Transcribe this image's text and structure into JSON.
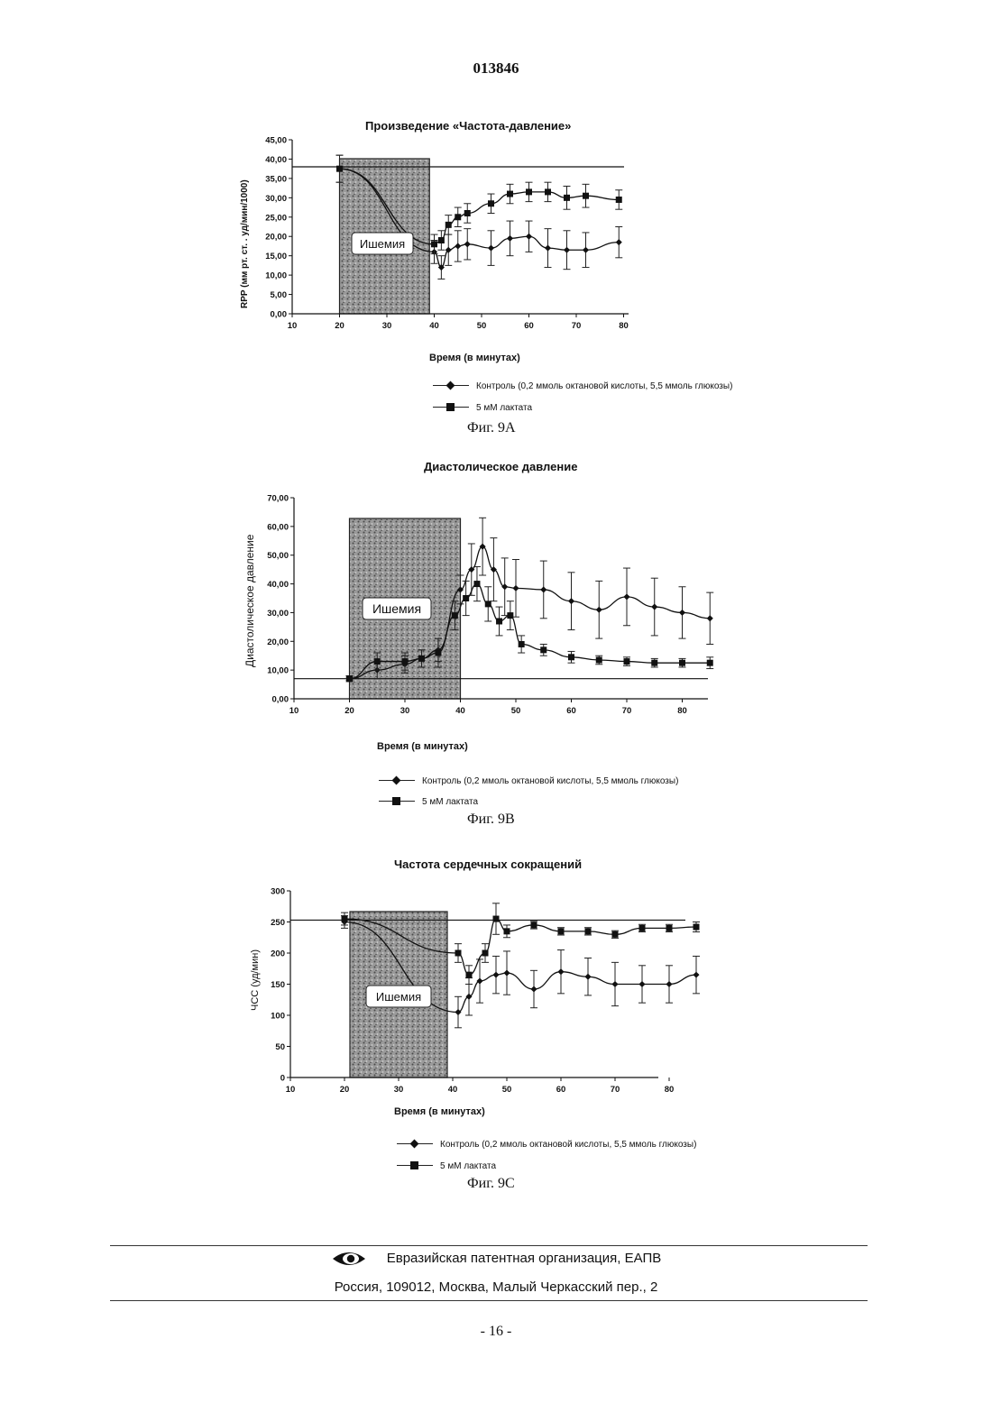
{
  "document": {
    "number": "013846",
    "page": "- 16 -",
    "footer_org": "Евразийская патентная организация, ЕАПВ",
    "footer_address": "Россия, 109012, Москва, Малый Черкасский пер., 2"
  },
  "chart_data": [
    {
      "id": "9A",
      "type": "line",
      "title": "Произведение «Частота-давление»",
      "xlabel": "Время (в минутах)",
      "ylabel": "RPP (мм рт. ст. . уд/мин/1000)",
      "xlim": [
        10,
        80
      ],
      "ylim": [
        0,
        45
      ],
      "xticks": [
        "10",
        "20",
        "30",
        "40",
        "50",
        "60",
        "70",
        "80"
      ],
      "yticks": [
        "0,00",
        "5,00",
        "10,00",
        "15,00",
        "20,00",
        "25,00",
        "30,00",
        "35,00",
        "40,00",
        "45,00"
      ],
      "ischemia_label": "Ишемия",
      "ischemia_range": [
        20,
        39
      ],
      "baseline": 38,
      "grid": false,
      "legend_position": "below",
      "series": [
        {
          "name": "Контроль (0,2 ммоль октановой кислоты, 5,5 ммоль глюкозы)",
          "marker": "diamond",
          "x": [
            20,
            40,
            41.5,
            43,
            45,
            47,
            52,
            56,
            60,
            64,
            68,
            72,
            79
          ],
          "y": [
            37.5,
            16,
            12,
            16.5,
            17.5,
            18,
            17,
            19.5,
            20,
            17,
            16.5,
            16.5,
            18.5
          ],
          "err": [
            3.5,
            3,
            3,
            4,
            4,
            4,
            4.5,
            4.5,
            4,
            5,
            5,
            4.5,
            4
          ]
        },
        {
          "name": "5 мМ лактата",
          "marker": "square",
          "x": [
            20,
            40,
            41.5,
            43,
            45,
            47,
            52,
            56,
            60,
            64,
            68,
            72,
            79
          ],
          "y": [
            37.5,
            18,
            19,
            23,
            25,
            26,
            28.5,
            31,
            31.5,
            31.5,
            30,
            30.5,
            29.5
          ],
          "err": [
            3.5,
            2.5,
            2.5,
            2.5,
            2.5,
            2.5,
            2.5,
            2.5,
            2.5,
            2.5,
            3,
            3,
            2.5
          ]
        }
      ],
      "figure_caption": "Фиг. 9A"
    },
    {
      "id": "9B",
      "type": "line",
      "title": "Диастолическое давление",
      "xlabel": "Время (в минутах)",
      "ylabel": "Диастолическое давление",
      "xlim": [
        10,
        85
      ],
      "ylim": [
        0,
        70
      ],
      "xticks": [
        "10",
        "20",
        "30",
        "40",
        "50",
        "60",
        "70",
        "80"
      ],
      "yticks": [
        "0,00",
        "10,00",
        "20,00",
        "30,00",
        "40,00",
        "50,00",
        "60,00",
        "70,00"
      ],
      "ischemia_label": "Ишемия",
      "ischemia_range": [
        20,
        40
      ],
      "baseline": 7,
      "grid": false,
      "legend_position": "below",
      "series": [
        {
          "name": "Контроль (0,2 ммоль октановой кислоты, 5,5 ммоль глюкозы)",
          "marker": "diamond",
          "x": [
            20,
            25,
            30,
            33,
            36,
            40,
            42,
            44,
            46,
            48,
            50,
            55,
            60,
            65,
            70,
            75,
            80,
            85
          ],
          "y": [
            7,
            10,
            12,
            14,
            17,
            38,
            45,
            53,
            45,
            39,
            38.5,
            38,
            34,
            31,
            35.5,
            32,
            30,
            28
          ],
          "err": [
            1,
            3,
            3,
            3,
            4,
            5,
            9,
            10,
            11,
            10,
            10,
            10,
            10,
            10,
            10,
            10,
            9,
            9
          ]
        },
        {
          "name": "5 мМ лактата",
          "marker": "square",
          "x": [
            20,
            25,
            30,
            33,
            36,
            39,
            41,
            43,
            45,
            47,
            49,
            51,
            55,
            60,
            65,
            70,
            75,
            80,
            85
          ],
          "y": [
            7,
            13,
            13,
            14,
            16,
            29,
            35,
            40,
            33,
            27,
            29,
            19,
            17,
            14.5,
            13.5,
            13,
            12.5,
            12.5,
            12.5
          ],
          "err": [
            0.5,
            3,
            3,
            3,
            5,
            5,
            6,
            6,
            6,
            5,
            5,
            3,
            2,
            2,
            1.5,
            1.5,
            1.5,
            1.5,
            2
          ]
        }
      ],
      "figure_caption": "Фиг. 9B"
    },
    {
      "id": "9C",
      "type": "line",
      "title": "Частота сердечных сокращений",
      "xlabel": "Время (в минутах)",
      "ylabel": "ЧСС (уд/мин)",
      "xlim": [
        10,
        80
      ],
      "ylim": [
        0,
        300
      ],
      "xticks": [
        "10",
        "20",
        "30",
        "40",
        "50",
        "60",
        "70",
        "80"
      ],
      "yticks": [
        "0",
        "50",
        "100",
        "150",
        "200",
        "250",
        "300"
      ],
      "ischemia_label": "Ишемия",
      "ischemia_range": [
        21,
        39
      ],
      "baseline": 253,
      "grid": false,
      "legend_position": "below",
      "series": [
        {
          "name": "Контроль (0,2 ммоль октановой кислоты, 5,5 ммоль глюкозы)",
          "marker": "diamond",
          "x": [
            20,
            41,
            43,
            45,
            48,
            50,
            55,
            60,
            65,
            70,
            75,
            80,
            85
          ],
          "y": [
            250,
            105,
            130,
            155,
            165,
            168,
            142,
            170,
            162,
            150,
            150,
            150,
            165
          ],
          "err": [
            10,
            25,
            30,
            35,
            30,
            35,
            30,
            35,
            30,
            35,
            30,
            30,
            30
          ]
        },
        {
          "name": "5 мМ лактата",
          "marker": "square",
          "x": [
            20,
            41,
            43,
            46,
            48,
            50,
            55,
            60,
            65,
            70,
            75,
            80,
            85
          ],
          "y": [
            255,
            200,
            165,
            200,
            255,
            235,
            245,
            235,
            235,
            230,
            240,
            240,
            242
          ],
          "err": [
            10,
            15,
            15,
            15,
            25,
            10,
            6,
            6,
            6,
            6,
            6,
            6,
            8
          ]
        }
      ],
      "figure_caption": "Фиг. 9C"
    }
  ]
}
